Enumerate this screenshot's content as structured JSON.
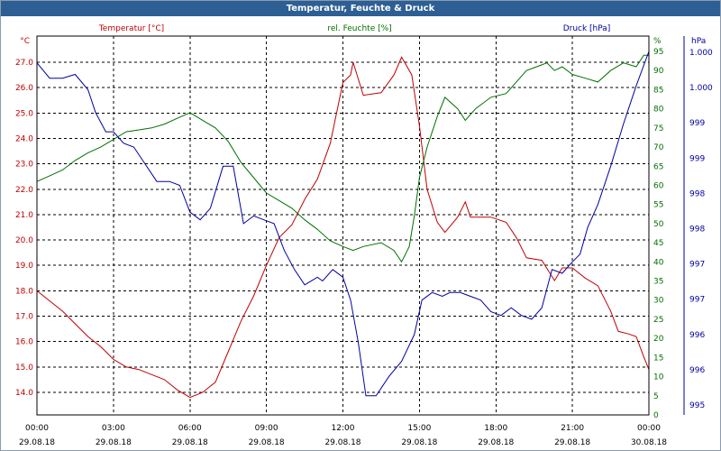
{
  "window": {
    "title": "Temperatur, Feuchte & Druck"
  },
  "colors": {
    "temp": "#c00000",
    "hum": "#007000",
    "press": "#0000a0",
    "grid": "#000000",
    "title_bg": "#2d5f94"
  },
  "chart_data": {
    "type": "line",
    "title": "Temperatur, Feuchte & Druck",
    "grid": "dashed",
    "x_labels": [
      {
        "time": "00:00",
        "date": "29.08.18"
      },
      {
        "time": "03:00",
        "date": "29.08.18"
      },
      {
        "time": "06:00",
        "date": "29.08.18"
      },
      {
        "time": "09:00",
        "date": "29.08.18"
      },
      {
        "time": "12:00",
        "date": "29.08.18"
      },
      {
        "time": "15:00",
        "date": "29.08.18"
      },
      {
        "time": "18:00",
        "date": "29.08.18"
      },
      {
        "time": "21:00",
        "date": "29.08.18"
      },
      {
        "time": "00:00",
        "date": "30.08.18"
      }
    ],
    "x_range_hours": [
      0,
      24
    ],
    "axes": {
      "temp": {
        "label": "Temperatur [°C]",
        "unit": "°C",
        "range": [
          13.2,
          28.0
        ],
        "ticks": [
          "27.0",
          "26.0",
          "25.0",
          "24.0",
          "23.0",
          "22.0",
          "21.0",
          "20.0",
          "19.0",
          "18.0",
          "17.0",
          "16.0",
          "15.0",
          "14.0"
        ]
      },
      "hum": {
        "label": "rel. Feuchte [%]",
        "unit": "%",
        "range": [
          0,
          95
        ],
        "ticks": [
          "0",
          "5",
          "10",
          "15",
          "20",
          "25",
          "30",
          "35",
          "40",
          "45",
          "50",
          "55",
          "60",
          "65",
          "70",
          "75",
          "80",
          "85",
          "90",
          "95"
        ]
      },
      "press": {
        "label": "Druck [hPa]",
        "unit": "hPa",
        "ticks": [
          "995",
          "996",
          "996",
          "997",
          "997",
          "998",
          "998",
          "999",
          "999",
          "1.000",
          "1.000"
        ]
      }
    },
    "series": [
      {
        "name": "Temperatur",
        "axis": "temp",
        "points": [
          [
            0,
            18.0
          ],
          [
            0.5,
            17.6
          ],
          [
            1,
            17.2
          ],
          [
            1.5,
            16.7
          ],
          [
            2,
            16.2
          ],
          [
            2.5,
            15.8
          ],
          [
            3,
            15.3
          ],
          [
            3.5,
            15.0
          ],
          [
            4,
            14.9
          ],
          [
            4.5,
            14.7
          ],
          [
            5,
            14.5
          ],
          [
            5.5,
            14.1
          ],
          [
            6,
            13.8
          ],
          [
            6.5,
            14.0
          ],
          [
            7,
            14.4
          ],
          [
            7.5,
            15.6
          ],
          [
            8,
            16.8
          ],
          [
            8.5,
            17.8
          ],
          [
            9,
            19.0
          ],
          [
            9.5,
            20.1
          ],
          [
            10,
            20.6
          ],
          [
            10.5,
            21.6
          ],
          [
            11,
            22.4
          ],
          [
            11.5,
            23.8
          ],
          [
            12,
            26.2
          ],
          [
            12.3,
            26.5
          ],
          [
            12.4,
            27.0
          ],
          [
            12.8,
            25.7
          ],
          [
            13.5,
            25.8
          ],
          [
            14,
            26.5
          ],
          [
            14.3,
            27.2
          ],
          [
            14.7,
            26.5
          ],
          [
            15,
            24.5
          ],
          [
            15.3,
            22.0
          ],
          [
            15.7,
            20.7
          ],
          [
            16,
            20.3
          ],
          [
            16.5,
            20.9
          ],
          [
            16.8,
            21.5
          ],
          [
            17,
            20.9
          ],
          [
            17.8,
            20.9
          ],
          [
            18.4,
            20.7
          ],
          [
            18.8,
            20.1
          ],
          [
            19.2,
            19.3
          ],
          [
            19.8,
            19.2
          ],
          [
            20.3,
            18.4
          ],
          [
            20.6,
            18.9
          ],
          [
            21,
            18.9
          ],
          [
            21.5,
            18.5
          ],
          [
            22,
            18.2
          ],
          [
            22.5,
            17.2
          ],
          [
            22.8,
            16.4
          ],
          [
            23.2,
            16.3
          ],
          [
            23.5,
            16.2
          ],
          [
            23.8,
            15.4
          ],
          [
            24,
            14.9
          ]
        ]
      },
      {
        "name": "rel. Feuchte",
        "axis": "hum",
        "points": [
          [
            0,
            61
          ],
          [
            0.5,
            62.5
          ],
          [
            1,
            64
          ],
          [
            1.5,
            66.5
          ],
          [
            2,
            68.5
          ],
          [
            2.5,
            70
          ],
          [
            3,
            72
          ],
          [
            3.5,
            74
          ],
          [
            4,
            74.5
          ],
          [
            4.5,
            75
          ],
          [
            5,
            76
          ],
          [
            5.5,
            77.5
          ],
          [
            6,
            79
          ],
          [
            6.5,
            77
          ],
          [
            7,
            75
          ],
          [
            7.5,
            71.5
          ],
          [
            8,
            66
          ],
          [
            8.5,
            62
          ],
          [
            9,
            58
          ],
          [
            9.5,
            56
          ],
          [
            10,
            54
          ],
          [
            10.5,
            51
          ],
          [
            11,
            48.5
          ],
          [
            11.5,
            45.5
          ],
          [
            12,
            44
          ],
          [
            12.4,
            43
          ],
          [
            12.8,
            44
          ],
          [
            13.5,
            45
          ],
          [
            14,
            43
          ],
          [
            14.3,
            40
          ],
          [
            14.6,
            44
          ],
          [
            14.8,
            52
          ],
          [
            15,
            62
          ],
          [
            15.3,
            70
          ],
          [
            15.7,
            78
          ],
          [
            16,
            83
          ],
          [
            16.5,
            80
          ],
          [
            16.8,
            77
          ],
          [
            17.2,
            80
          ],
          [
            17.8,
            83
          ],
          [
            18.4,
            84
          ],
          [
            18.8,
            87
          ],
          [
            19.2,
            90
          ],
          [
            19.6,
            91
          ],
          [
            20,
            92
          ],
          [
            20.3,
            90
          ],
          [
            20.6,
            91
          ],
          [
            21,
            89
          ],
          [
            21.5,
            88
          ],
          [
            22,
            87
          ],
          [
            22.5,
            90
          ],
          [
            23,
            92
          ],
          [
            23.5,
            91
          ],
          [
            23.8,
            94
          ],
          [
            24,
            94
          ]
        ]
      },
      {
        "name": "Druck",
        "axis": "press",
        "points": [
          [
            0,
            92
          ],
          [
            0.5,
            88
          ],
          [
            1,
            88
          ],
          [
            1.5,
            89
          ],
          [
            2,
            85
          ],
          [
            2.3,
            79
          ],
          [
            2.7,
            74
          ],
          [
            3,
            74
          ],
          [
            3.4,
            71
          ],
          [
            3.8,
            70
          ],
          [
            4.2,
            66
          ],
          [
            4.7,
            61
          ],
          [
            5.2,
            61
          ],
          [
            5.6,
            60
          ],
          [
            6,
            53
          ],
          [
            6.4,
            51
          ],
          [
            6.8,
            54
          ],
          [
            7.3,
            65
          ],
          [
            7.7,
            65
          ],
          [
            8.1,
            50
          ],
          [
            8.5,
            52
          ],
          [
            8.9,
            51
          ],
          [
            9.3,
            50
          ],
          [
            9.7,
            43
          ],
          [
            10.1,
            38
          ],
          [
            10.5,
            34
          ],
          [
            11,
            36
          ],
          [
            11.2,
            35
          ],
          [
            11.6,
            38
          ],
          [
            12,
            36
          ],
          [
            12.3,
            30
          ],
          [
            12.6,
            19
          ],
          [
            12.9,
            5
          ],
          [
            13.3,
            5
          ],
          [
            13.8,
            10
          ],
          [
            14.3,
            14
          ],
          [
            14.8,
            21
          ],
          [
            15.1,
            30
          ],
          [
            15.5,
            32
          ],
          [
            15.9,
            31
          ],
          [
            16.2,
            32
          ],
          [
            16.6,
            32
          ],
          [
            17,
            31
          ],
          [
            17.4,
            30
          ],
          [
            17.8,
            27
          ],
          [
            18.2,
            26
          ],
          [
            18.6,
            28
          ],
          [
            19,
            26
          ],
          [
            19.4,
            25
          ],
          [
            19.8,
            28
          ],
          [
            20.2,
            38
          ],
          [
            20.6,
            37
          ],
          [
            21,
            40
          ],
          [
            21.3,
            42
          ],
          [
            21.6,
            49
          ],
          [
            22,
            55
          ],
          [
            22.5,
            65
          ],
          [
            23,
            76
          ],
          [
            23.5,
            86
          ],
          [
            24,
            95
          ]
        ]
      }
    ]
  }
}
